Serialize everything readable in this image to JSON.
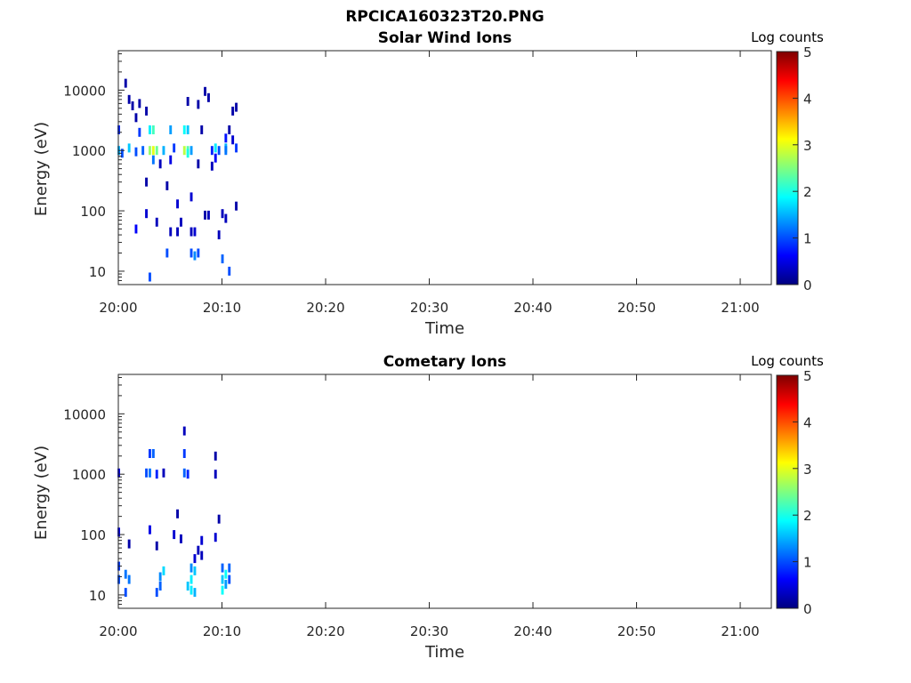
{
  "figure": {
    "title": "RPCICA160323T20.PNG"
  },
  "colormap": {
    "name": "jet",
    "stops": [
      "#00007f",
      "#0000ff",
      "#007fff",
      "#00ffff",
      "#7fff7f",
      "#ffff00",
      "#ff7f00",
      "#ff0000",
      "#7f0000"
    ]
  },
  "chart_data": [
    {
      "type": "heatmap",
      "title": "Solar Wind Ions",
      "xlabel": "Time",
      "ylabel": "Energy (eV)",
      "x_scale": "time",
      "y_scale": "log",
      "xlim": [
        "20:00",
        "21:03"
      ],
      "ylim": [
        6,
        45000
      ],
      "xticks": [
        "20:00",
        "20:10",
        "20:20",
        "20:30",
        "20:40",
        "20:50",
        "21:00"
      ],
      "yticks": [
        10,
        100,
        1000,
        10000
      ],
      "ytick_labels": [
        "10",
        "100",
        "1000",
        "10000"
      ],
      "colorbar": {
        "label": "Log counts",
        "range": [
          0,
          5
        ],
        "ticks": [
          "0",
          "1",
          "2",
          "3",
          "4",
          "5"
        ]
      },
      "cells": [
        [
          "20:00:00",
          1000,
          1.5
        ],
        [
          "20:00:00",
          2200,
          0.8
        ],
        [
          "20:00:20",
          900,
          1.0
        ],
        [
          "20:00:40",
          13000,
          0.2
        ],
        [
          "20:01:00",
          7000,
          0.2
        ],
        [
          "20:01:00",
          1100,
          1.6
        ],
        [
          "20:01:20",
          5500,
          0.2
        ],
        [
          "20:01:40",
          3500,
          0.2
        ],
        [
          "20:01:40",
          950,
          1.0
        ],
        [
          "20:01:40",
          50,
          0.6
        ],
        [
          "20:02:00",
          6000,
          0.2
        ],
        [
          "20:02:00",
          2000,
          0.9
        ],
        [
          "20:02:20",
          1000,
          1.1
        ],
        [
          "20:02:40",
          4500,
          0.2
        ],
        [
          "20:02:40",
          300,
          0.2
        ],
        [
          "20:02:40",
          90,
          0.4
        ],
        [
          "20:03:00",
          2200,
          1.8
        ],
        [
          "20:03:00",
          1000,
          2.6
        ],
        [
          "20:03:00",
          8,
          1.0
        ],
        [
          "20:03:20",
          2200,
          2.2
        ],
        [
          "20:03:20",
          1000,
          3.0
        ],
        [
          "20:03:20",
          700,
          1.2
        ],
        [
          "20:03:40",
          1000,
          2.4
        ],
        [
          "20:03:40",
          65,
          0.3
        ],
        [
          "20:04:00",
          600,
          0.3
        ],
        [
          "20:04:20",
          1000,
          1.5
        ],
        [
          "20:04:40",
          20,
          1.0
        ],
        [
          "20:04:40",
          260,
          0.2
        ],
        [
          "20:05:00",
          2200,
          1.4
        ],
        [
          "20:05:00",
          700,
          0.5
        ],
        [
          "20:05:00",
          45,
          0.3
        ],
        [
          "20:05:20",
          1100,
          0.9
        ],
        [
          "20:05:40",
          130,
          0.4
        ],
        [
          "20:05:40",
          45,
          0.3
        ],
        [
          "20:06:00",
          65,
          0.3
        ],
        [
          "20:06:20",
          2200,
          1.9
        ],
        [
          "20:06:20",
          1000,
          2.8
        ],
        [
          "20:06:40",
          2200,
          1.6
        ],
        [
          "20:06:40",
          1000,
          2.3
        ],
        [
          "20:06:40",
          900,
          2.0
        ],
        [
          "20:06:40",
          6500,
          0.2
        ],
        [
          "20:07:00",
          1000,
          1.4
        ],
        [
          "20:07:00",
          170,
          0.4
        ],
        [
          "20:07:00",
          45,
          0.3
        ],
        [
          "20:07:00",
          20,
          1.0
        ],
        [
          "20:07:20",
          45,
          0.4
        ],
        [
          "20:07:20",
          18,
          1.3
        ],
        [
          "20:07:40",
          20,
          1.0
        ],
        [
          "20:07:40",
          600,
          0.2
        ],
        [
          "20:07:40",
          5800,
          0.2
        ],
        [
          "20:08:00",
          2200,
          0.2
        ],
        [
          "20:08:20",
          9500,
          0.2
        ],
        [
          "20:08:20",
          85,
          0.2
        ],
        [
          "20:08:40",
          7500,
          0.2
        ],
        [
          "20:08:40",
          85,
          0.3
        ],
        [
          "20:09:00",
          1000,
          0.8
        ],
        [
          "20:09:00",
          550,
          0.3
        ],
        [
          "20:09:20",
          1100,
          1.8
        ],
        [
          "20:09:20",
          750,
          0.6
        ],
        [
          "20:09:40",
          1000,
          1.0
        ],
        [
          "20:09:40",
          40,
          0.3
        ],
        [
          "20:10:00",
          90,
          0.3
        ],
        [
          "20:10:00",
          16,
          1.1
        ],
        [
          "20:10:20",
          1100,
          1.5
        ],
        [
          "20:10:20",
          1600,
          0.7
        ],
        [
          "20:10:20",
          1000,
          1.2
        ],
        [
          "20:10:20",
          75,
          0.3
        ],
        [
          "20:10:40",
          2200,
          0.2
        ],
        [
          "20:10:40",
          10,
          1.0
        ],
        [
          "20:11:00",
          1500,
          0.4
        ],
        [
          "20:11:00",
          4500,
          0.2
        ],
        [
          "20:11:20",
          5200,
          0.2
        ],
        [
          "20:11:20",
          1100,
          0.9
        ],
        [
          "20:11:20",
          120,
          0.2
        ]
      ]
    },
    {
      "type": "heatmap",
      "title": "Cometary Ions",
      "xlabel": "Time",
      "ylabel": "Energy (eV)",
      "x_scale": "time",
      "y_scale": "log",
      "xlim": [
        "20:00",
        "21:03"
      ],
      "ylim": [
        6,
        45000
      ],
      "xticks": [
        "20:00",
        "20:10",
        "20:20",
        "20:30",
        "20:40",
        "20:50",
        "21:00"
      ],
      "yticks": [
        10,
        100,
        1000,
        10000
      ],
      "ytick_labels": [
        "10",
        "100",
        "1000",
        "10000"
      ],
      "colorbar": {
        "label": "Log counts",
        "range": [
          0,
          5
        ],
        "ticks": [
          "0",
          "1",
          "2",
          "3",
          "4",
          "5"
        ]
      },
      "cells": [
        [
          "20:00:00",
          30,
          0.9
        ],
        [
          "20:00:00",
          18,
          1.0
        ],
        [
          "20:00:00",
          110,
          0.5
        ],
        [
          "20:00:00",
          1050,
          0.5
        ],
        [
          "20:00:40",
          11,
          1.0
        ],
        [
          "20:00:40",
          22,
          1.2
        ],
        [
          "20:01:00",
          18,
          1.2
        ],
        [
          "20:01:00",
          70,
          0.2
        ],
        [
          "20:02:40",
          1050,
          1.0
        ],
        [
          "20:03:00",
          2200,
          0.9
        ],
        [
          "20:03:00",
          1050,
          1.2
        ],
        [
          "20:03:00",
          120,
          0.5
        ],
        [
          "20:03:20",
          2200,
          1.1
        ],
        [
          "20:03:40",
          1000,
          0.8
        ],
        [
          "20:03:40",
          65,
          0.2
        ],
        [
          "20:03:40",
          11,
          1.0
        ],
        [
          "20:04:00",
          14,
          1.1
        ],
        [
          "20:04:00",
          20,
          1.3
        ],
        [
          "20:04:20",
          25,
          1.7
        ],
        [
          "20:04:20",
          1050,
          0.3
        ],
        [
          "20:05:20",
          100,
          0.4
        ],
        [
          "20:05:40",
          220,
          0.2
        ],
        [
          "20:06:00",
          85,
          0.3
        ],
        [
          "20:06:20",
          5200,
          0.3
        ],
        [
          "20:06:20",
          2200,
          0.9
        ],
        [
          "20:06:20",
          1050,
          1.1
        ],
        [
          "20:06:40",
          1000,
          0.8
        ],
        [
          "20:06:40",
          14,
          1.6
        ],
        [
          "20:07:00",
          18,
          1.8
        ],
        [
          "20:07:00",
          12,
          1.8
        ],
        [
          "20:07:00",
          28,
          1.3
        ],
        [
          "20:07:20",
          25,
          1.6
        ],
        [
          "20:07:20",
          11,
          1.5
        ],
        [
          "20:07:20",
          40,
          0.4
        ],
        [
          "20:07:40",
          55,
          0.3
        ],
        [
          "20:08:00",
          45,
          0.3
        ],
        [
          "20:08:00",
          80,
          0.4
        ],
        [
          "20:09:20",
          2000,
          0.2
        ],
        [
          "20:09:20",
          1000,
          0.3
        ],
        [
          "20:09:20",
          90,
          0.4
        ],
        [
          "20:09:40",
          180,
          0.2
        ],
        [
          "20:10:00",
          28,
          1.1
        ],
        [
          "20:10:00",
          18,
          1.6
        ],
        [
          "20:10:00",
          12,
          1.9
        ],
        [
          "20:10:20",
          22,
          1.9
        ],
        [
          "20:10:20",
          15,
          1.4
        ],
        [
          "20:10:40",
          28,
          1.1
        ],
        [
          "20:10:40",
          18,
          1.0
        ]
      ]
    }
  ]
}
